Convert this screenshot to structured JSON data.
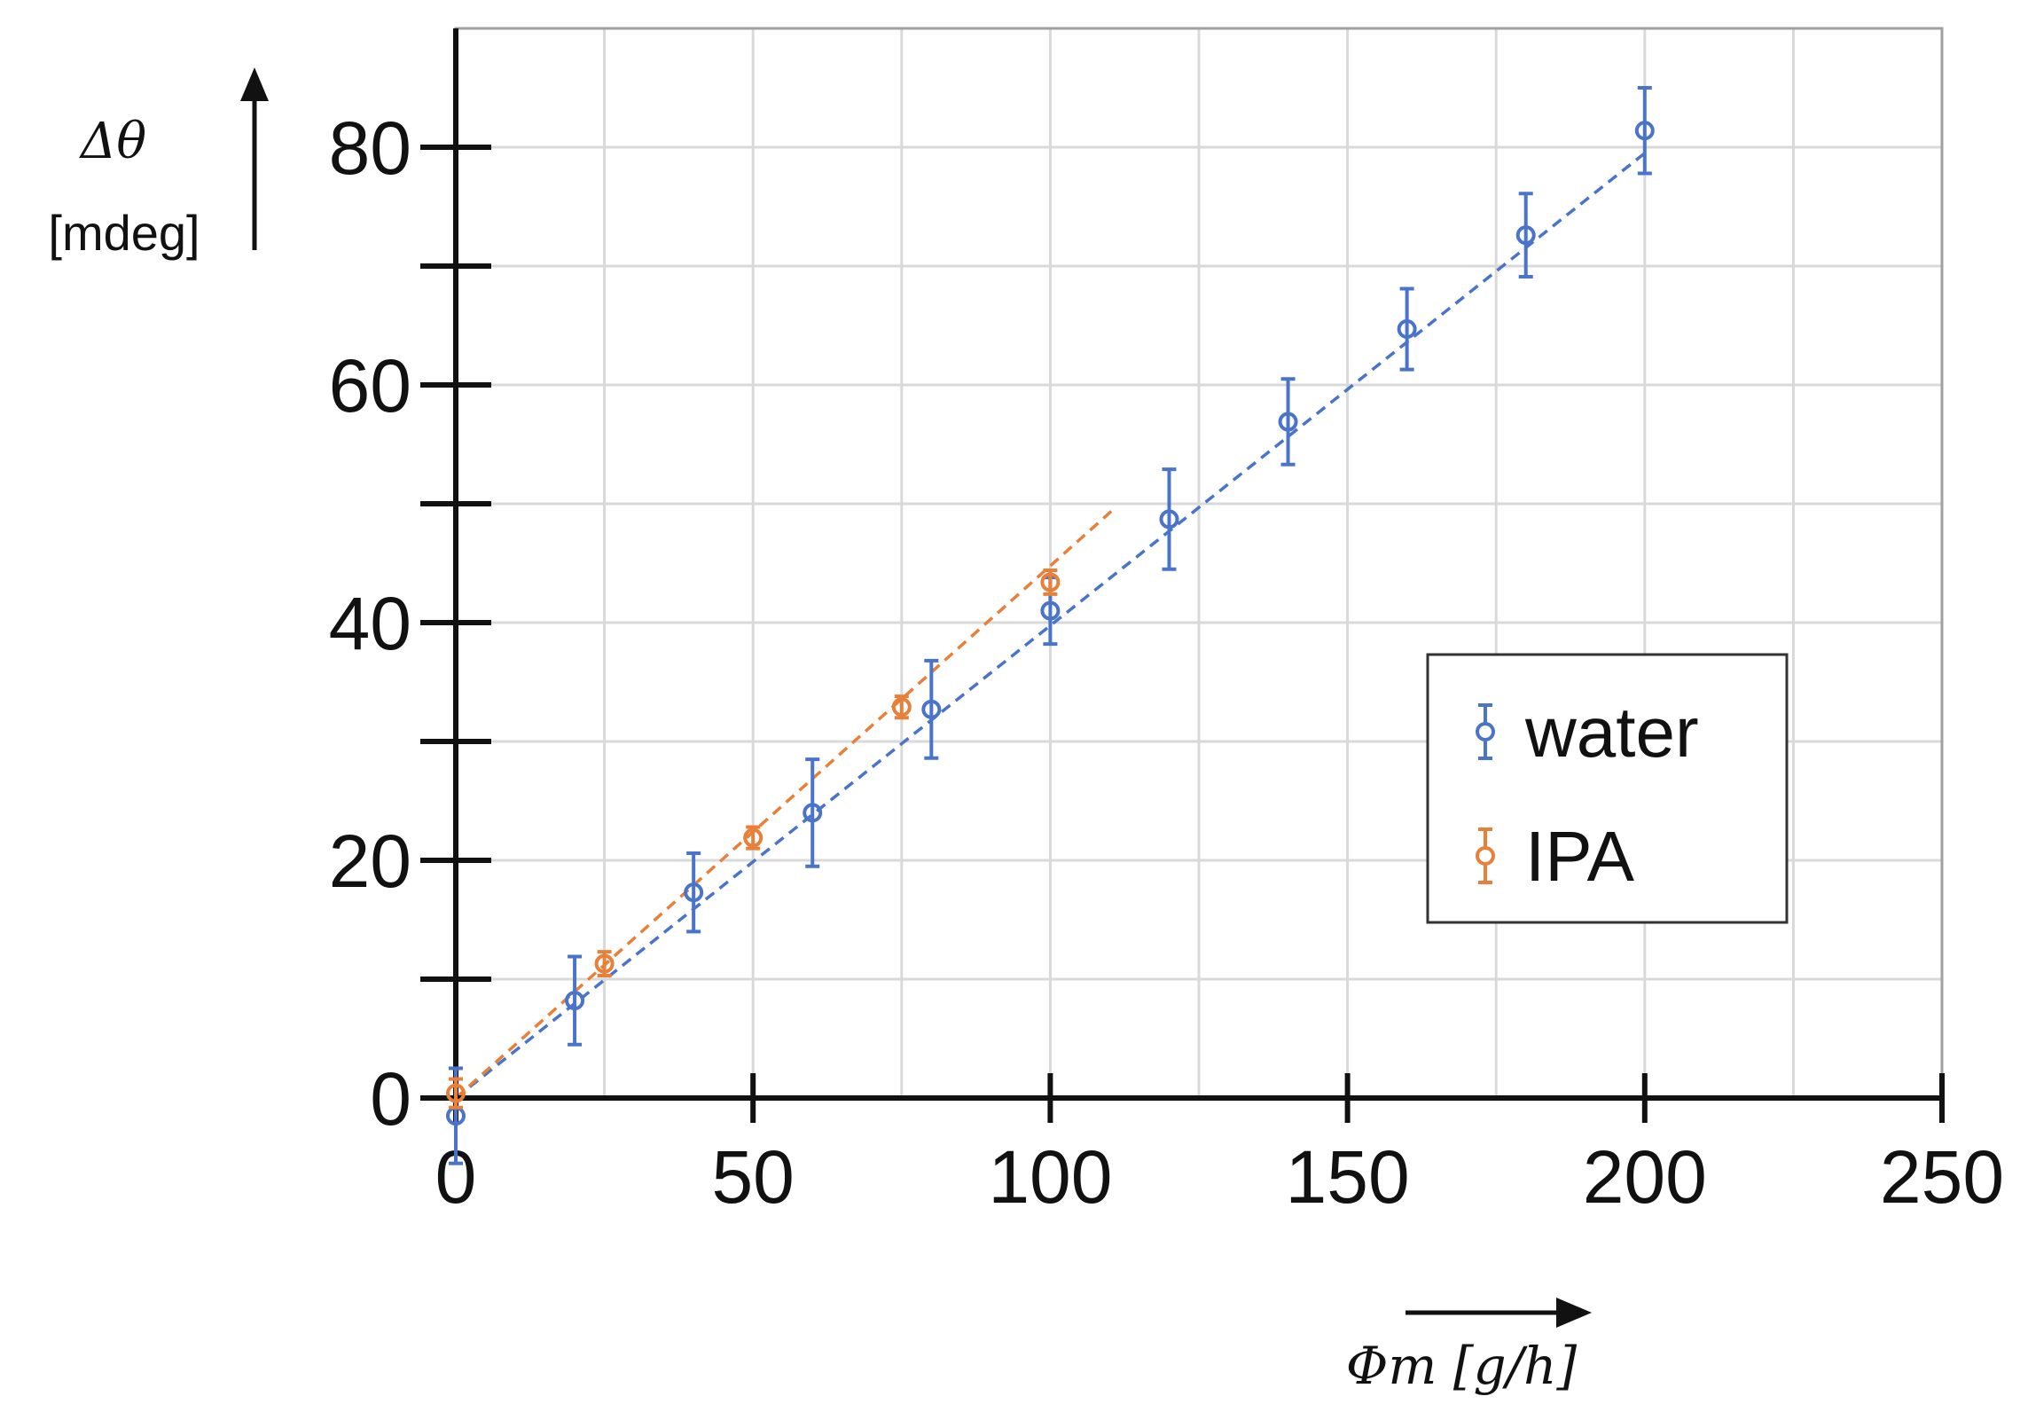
{
  "chart_data": {
    "type": "scatter",
    "title": "",
    "ylabel": "Δθ",
    "ylabel_unit": "[mdeg]",
    "xlabel": "Φm [g/h]",
    "xlim": [
      0,
      250
    ],
    "ylim": [
      0,
      90
    ],
    "x_ticks": [
      0,
      50,
      100,
      150,
      200,
      250
    ],
    "x_tick_labels": [
      "0",
      "50",
      "100",
      "150",
      "200",
      "250"
    ],
    "y_ticks": [
      0,
      20,
      40,
      60,
      80
    ],
    "y_tick_labels": [
      "0",
      "20",
      "40",
      "60",
      "80"
    ],
    "y_minor_ticks": [
      10,
      30,
      50,
      70
    ],
    "grid": true,
    "legend_position": "right",
    "series": [
      {
        "name": "water",
        "color": "#4a74c9",
        "x": [
          0,
          20,
          40,
          60,
          80,
          100,
          120,
          140,
          160,
          180,
          200
        ],
        "y": [
          -1.5,
          8.2,
          17.3,
          24.0,
          32.7,
          41.0,
          48.7,
          56.9,
          64.7,
          72.6,
          81.4
        ],
        "err": [
          4.0,
          3.7,
          3.3,
          4.5,
          4.1,
          2.8,
          4.2,
          3.6,
          3.4,
          3.5,
          3.6
        ],
        "fit": {
          "x0": 0,
          "y0": 0,
          "x1": 200,
          "y1": 79.5
        }
      },
      {
        "name": "IPA",
        "color": "#e8803a",
        "x": [
          0,
          25,
          50,
          75,
          100
        ],
        "y": [
          0.4,
          11.3,
          21.9,
          32.9,
          43.4
        ],
        "err": [
          1.2,
          1.0,
          0.9,
          0.9,
          1.0
        ],
        "fit": {
          "x0": 0,
          "y0": 0,
          "x1": 111,
          "y1": 49.7
        }
      }
    ]
  }
}
